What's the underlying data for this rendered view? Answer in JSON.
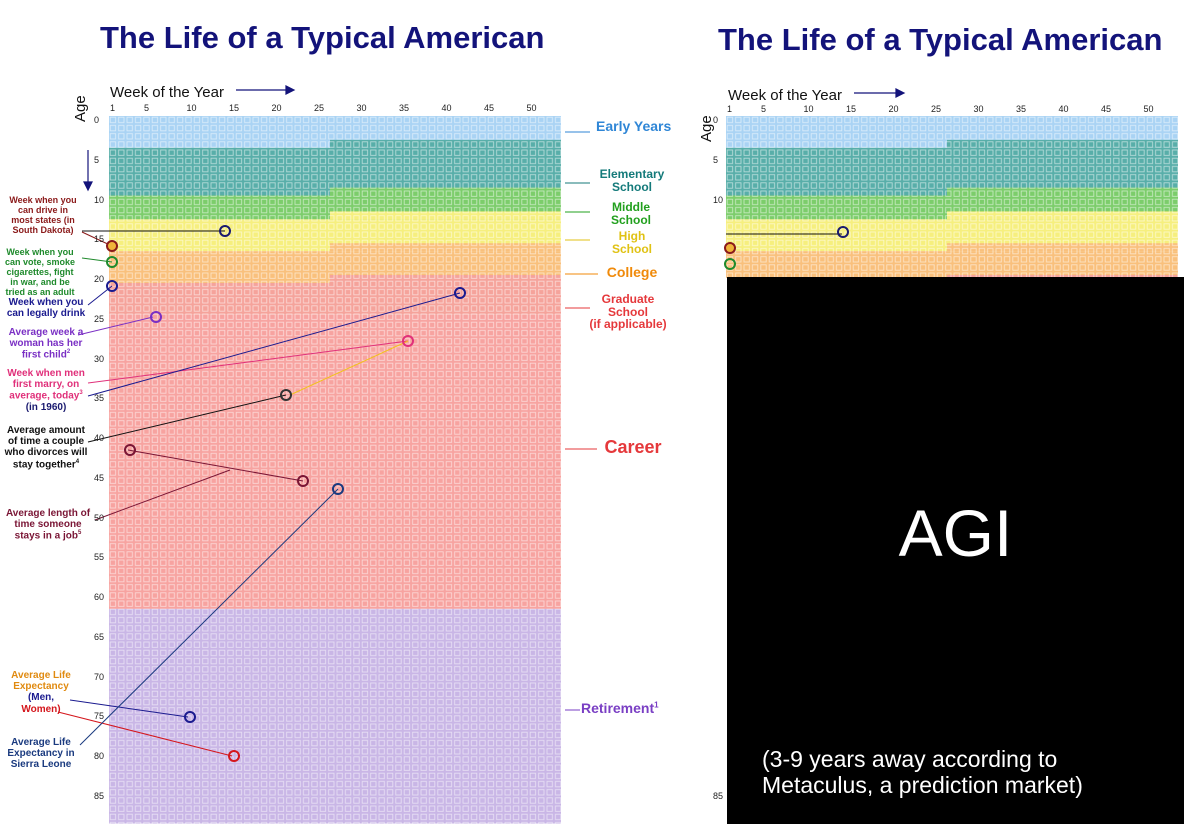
{
  "left_panel": {
    "title": "The Life of a Typical American",
    "x_axis_title": "Week of the Year",
    "y_axis_title": "Age",
    "week_ticks": [
      "1",
      "5",
      "10",
      "15",
      "20",
      "25",
      "30",
      "35",
      "40",
      "45",
      "50"
    ],
    "age_ticks": [
      "0",
      "5",
      "10",
      "15",
      "20",
      "25",
      "30",
      "35",
      "40",
      "45",
      "50",
      "55",
      "60",
      "65",
      "70",
      "75",
      "80",
      "85"
    ],
    "stages": [
      {
        "label": "Early Years",
        "color": "#2f86d6",
        "band_color": "#a9d3f4",
        "from_age": 0,
        "to_age": 4
      },
      {
        "label": "Elementary School",
        "color": "#147a7a",
        "band_color": "#58aea9",
        "from_age": 4,
        "to_age": 10
      },
      {
        "label": "Middle School",
        "color": "#22a01e",
        "band_color": "#7ccd6b",
        "from_age": 10,
        "to_age": 13
      },
      {
        "label": "High School",
        "color": "#e0c214",
        "band_color": "#f6ef7e",
        "from_age": 13,
        "to_age": 17
      },
      {
        "label": "College",
        "color": "#f08a0a",
        "band_color": "#f9c07c",
        "from_age": 17,
        "to_age": 21
      },
      {
        "label": "Graduate School",
        "sublabel": "(if applicable)",
        "color": "#e5383b",
        "band_color": "#f5a39b",
        "from_age": 21,
        "to_age": 25
      },
      {
        "label": "Career",
        "color": "#e5383b",
        "band_color": "#f7a3a0",
        "from_age": 25,
        "to_age": 62
      },
      {
        "label": "Retirement",
        "sup": "1",
        "color": "#7a3fc4",
        "band_color": "#c9b6e6",
        "from_age": 62,
        "to_age": 89
      }
    ],
    "annotations": [
      {
        "text": "Week when you can drive in most states (in South Dakota)",
        "color": "#8b1a1a"
      },
      {
        "text": "Week when you can vote, smoke cigarettes, fight in war, and be tried as an adult",
        "color": "#1f8a2c"
      },
      {
        "text": "Week when you can legally drink",
        "color": "#1a1a8f"
      },
      {
        "text": "Average week a woman has her first child",
        "sup": "2",
        "color": "#7a2fc4"
      },
      {
        "text_a": "Week when men first marry, on average, today",
        "sup": "3",
        "text_b": "(in 1960)",
        "color": "#e0307a",
        "color_b": "#1a1a6f"
      },
      {
        "text": "Average amount of time a couple who divorces will stay together",
        "sup": "4",
        "color": "#111111"
      },
      {
        "text": "Average length of time someone stays in a job",
        "sup": "5",
        "color": "#7a1535"
      },
      {
        "text_a": "Average Life Expectancy",
        "text_b": "(Men,",
        "text_c": "Women)",
        "color": "#e08a10",
        "color_b": "#1a1a8f",
        "color_c": "#d4161c"
      },
      {
        "text": "Average Life Expectancy in Sierra Leone",
        "color": "#1a3a7f"
      }
    ]
  },
  "right_panel": {
    "title": "The Life of a Typical American",
    "x_axis_title": "Week of the Year",
    "y_axis_title": "Age",
    "week_ticks": [
      "1",
      "5",
      "10",
      "15",
      "20",
      "25",
      "30",
      "35",
      "40",
      "45",
      "50"
    ],
    "age_ticks": [
      "0",
      "5",
      "10",
      "85"
    ],
    "overlay_title": "AGI",
    "overlay_subtitle_line1": "(3-9 years away according to",
    "overlay_subtitle_line2": "Metaculus, a prediction market)"
  }
}
